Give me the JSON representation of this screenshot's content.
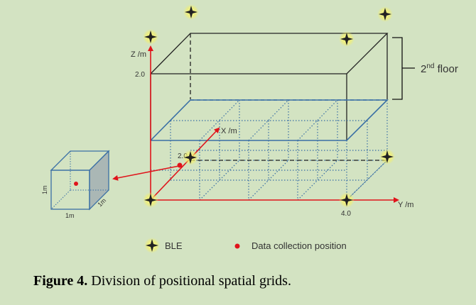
{
  "axes": {
    "z_label": "Z /m",
    "z_tick": "2.0",
    "x_label": "X /m",
    "x_tick": "2.0",
    "y_label": "Y /m",
    "y_tick": "4.0"
  },
  "floor_label_main": "2",
  "floor_label_sup": "nd",
  "floor_label_rest": " floor",
  "cube": {
    "label_left": "1m",
    "label_bottom": "1m",
    "label_right": "1m"
  },
  "legend": {
    "ble_label": "BLE",
    "data_label": "Data collection position"
  },
  "caption": {
    "prefix": "Figure 4.",
    "text": " Division of positional spatial grids."
  },
  "colors": {
    "background": "#d3e3c2",
    "axis_red": "#e0141b",
    "grid_blue": "#3a6fa5",
    "ble_gold": "#f0ef7a"
  }
}
